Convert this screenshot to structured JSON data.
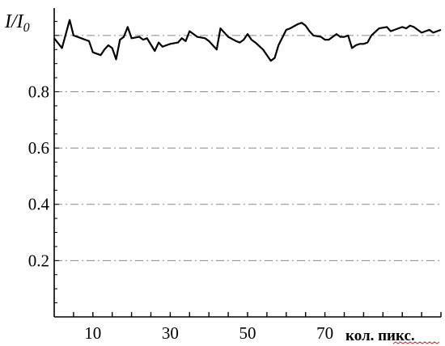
{
  "chart_data": {
    "type": "line",
    "title": "",
    "ylabel": "I/I",
    "ylabel_sub": "0",
    "xlabel": "кол. пикс.",
    "xlim": [
      0,
      100
    ],
    "ylim": [
      0,
      1.08
    ],
    "xticks": [
      10,
      30,
      50,
      70
    ],
    "yticks": [
      0.2,
      0.4,
      0.6,
      0.8
    ],
    "ytick_labels": [
      "0.2",
      "0.4",
      "0.6",
      "0.8"
    ],
    "grid": {
      "y": true,
      "x": false,
      "style": "dash-dot"
    },
    "gridline_values": [
      0.2,
      0.4,
      0.6,
      0.8,
      1.0
    ],
    "colors": {
      "line": "#000000",
      "grid": "#888888",
      "axis": "#000000"
    },
    "series": [
      {
        "x": [
          0,
          2,
          4,
          5,
          7,
          8,
          9,
          10,
          12,
          13,
          14,
          15,
          16,
          17,
          18,
          19,
          20,
          22,
          23,
          24,
          26,
          27,
          28,
          29,
          30,
          32,
          33,
          34,
          35,
          37,
          39,
          40,
          42,
          43,
          45,
          47,
          48,
          49,
          50,
          51,
          52,
          54,
          56,
          57,
          58,
          60,
          61,
          63,
          64,
          65,
          66,
          67,
          69,
          70,
          71,
          73,
          74,
          75,
          76,
          77,
          78,
          79,
          80,
          81,
          82,
          84,
          86,
          87,
          88,
          89,
          90,
          91,
          92,
          93,
          94,
          95,
          96,
          97,
          98,
          99,
          100
        ],
        "y": [
          0.99,
          0.955,
          1.055,
          1.0,
          0.99,
          0.985,
          0.98,
          0.94,
          0.93,
          0.95,
          0.965,
          0.955,
          0.915,
          0.985,
          0.995,
          1.03,
          0.99,
          0.995,
          0.985,
          0.99,
          0.945,
          0.975,
          0.96,
          0.965,
          0.97,
          0.975,
          0.99,
          0.98,
          1.015,
          0.995,
          0.99,
          0.98,
          0.95,
          1.025,
          0.995,
          0.98,
          0.975,
          0.985,
          1.005,
          0.985,
          0.975,
          0.95,
          0.91,
          0.92,
          0.965,
          1.02,
          1.025,
          1.04,
          1.045,
          1.035,
          1.015,
          1.0,
          0.995,
          0.985,
          0.985,
          1.005,
          0.995,
          0.995,
          1.0,
          0.955,
          0.965,
          0.97,
          0.97,
          0.975,
          1.0,
          1.025,
          1.03,
          1.015,
          1.02,
          1.025,
          1.03,
          1.025,
          1.035,
          1.03,
          1.02,
          1.01,
          1.015,
          1.02,
          1.01,
          1.015,
          1.02
        ]
      }
    ]
  }
}
